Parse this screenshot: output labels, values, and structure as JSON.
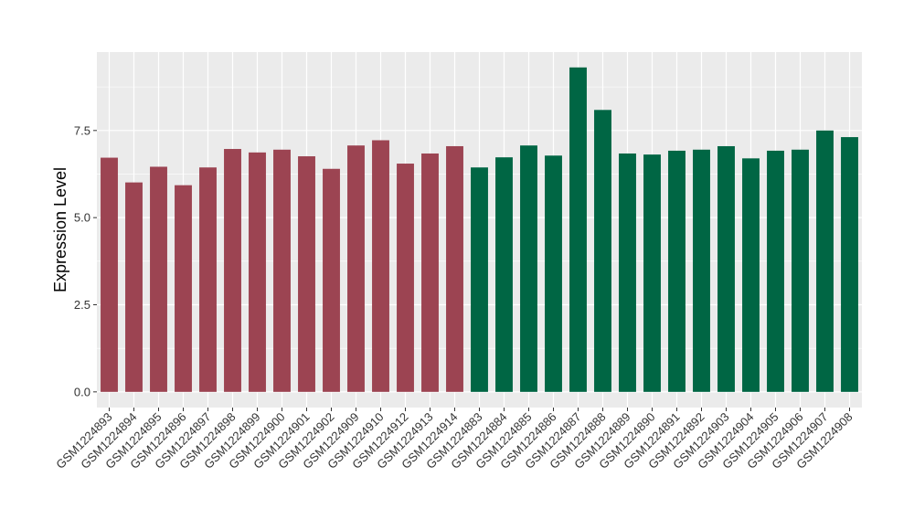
{
  "chart_data": {
    "type": "bar",
    "title": "",
    "xlabel": "",
    "ylabel": "Expression Level",
    "ylim": [
      -0.45,
      9.75
    ],
    "yticks": [
      0.0,
      2.5,
      5.0,
      7.5
    ],
    "ytick_labels": [
      "0.0",
      "2.5",
      "5.0",
      "7.5"
    ],
    "grid": true,
    "legend": "none",
    "categories": [
      "GSM1224893",
      "GSM1224894",
      "GSM1224895",
      "GSM1224896",
      "GSM1224897",
      "GSM1224898",
      "GSM1224899",
      "GSM1224900",
      "GSM1224901",
      "GSM1224902",
      "GSM1224909",
      "GSM1224910",
      "GSM1224912",
      "GSM1224913",
      "GSM1224914",
      "GSM1224883",
      "GSM1224884",
      "GSM1224885",
      "GSM1224886",
      "GSM1224887",
      "GSM1224888",
      "GSM1224889",
      "GSM1224890",
      "GSM1224891",
      "GSM1224892",
      "GSM1224903",
      "GSM1224904",
      "GSM1224905",
      "GSM1224906",
      "GSM1224907",
      "GSM1224908"
    ],
    "values": [
      6.72,
      6.01,
      6.46,
      5.93,
      6.44,
      6.97,
      6.87,
      6.95,
      6.76,
      6.4,
      7.07,
      7.22,
      6.55,
      6.84,
      7.05,
      6.44,
      6.73,
      7.07,
      6.78,
      9.31,
      8.09,
      6.84,
      6.81,
      6.92,
      6.95,
      7.05,
      6.7,
      6.92,
      6.95,
      7.5,
      7.31
    ],
    "series": [
      {
        "color": "#9c4452",
        "start": 0,
        "count": 15
      },
      {
        "color": "#006644",
        "start": 15,
        "count": 16
      }
    ],
    "colors": {
      "panel_bg": "#ebebeb",
      "grid_major": "#ffffff",
      "tick": "#333333"
    }
  }
}
